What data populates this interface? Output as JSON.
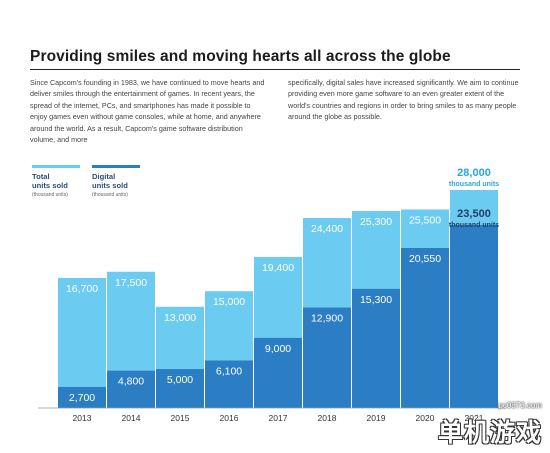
{
  "page": {
    "title": "Providing smiles and moving hearts all across the globe",
    "paragraph_left": "Since Capcom's founding in 1983, we have continued to move hearts and deliver smiles through the entertainment of games. In recent years, the spread of the internet, PCs, and smartphones has made it possible to enjoy games even without game consoles, while at home, and anywhere around the world. As a result, Capcom's game software distribution volume, and more",
    "paragraph_right": "specifically, digital sales have increased significantly. We aim to continue providing even more game software to an even greater extent of the world's countries and regions in order to bring smiles to as many people around the globe as possible."
  },
  "legend": {
    "total": {
      "label_line1": "Total",
      "label_line2": "units sold",
      "unit": "(thousand units)"
    },
    "digital": {
      "label_line1": "Digital",
      "label_line2": "units sold",
      "unit": "(thousand units)"
    }
  },
  "colors": {
    "total": "#6ccbf0",
    "digital": "#2b7dc4",
    "total_label": "#ffffff",
    "digital_label": "#ffffff",
    "highlight_total": "#2aa5e0",
    "highlight_digital": "#1f3f66"
  },
  "chart_data": {
    "type": "bar",
    "categories": [
      "2013",
      "2014",
      "2015",
      "2016",
      "2017",
      "2018",
      "2019",
      "2020",
      "2021"
    ],
    "series": [
      {
        "name": "Total units sold",
        "values": [
          16700,
          17500,
          13000,
          15000,
          19400,
          24400,
          25300,
          25500,
          28000
        ]
      },
      {
        "name": "Digital units sold",
        "values": [
          2700,
          4800,
          5000,
          6100,
          9000,
          12900,
          15300,
          20550,
          23500
        ]
      }
    ],
    "value_labels_total": [
      "16,700",
      "17,500",
      "13,000",
      "15,000",
      "19,400",
      "24,400",
      "25,300",
      "25,500",
      "28,000"
    ],
    "value_labels_digital": [
      "2,700",
      "4,800",
      "5,000",
      "6,100",
      "9,000",
      "12,900",
      "15,300",
      "20,550",
      "23,500"
    ],
    "highlight_unit": "thousand units",
    "ylim": [
      0,
      28000
    ],
    "grid": false,
    "legend_position": "top-left",
    "overlay": true
  },
  "watermark": {
    "site": "pc0873.com",
    "mark": "单机游戏"
  }
}
